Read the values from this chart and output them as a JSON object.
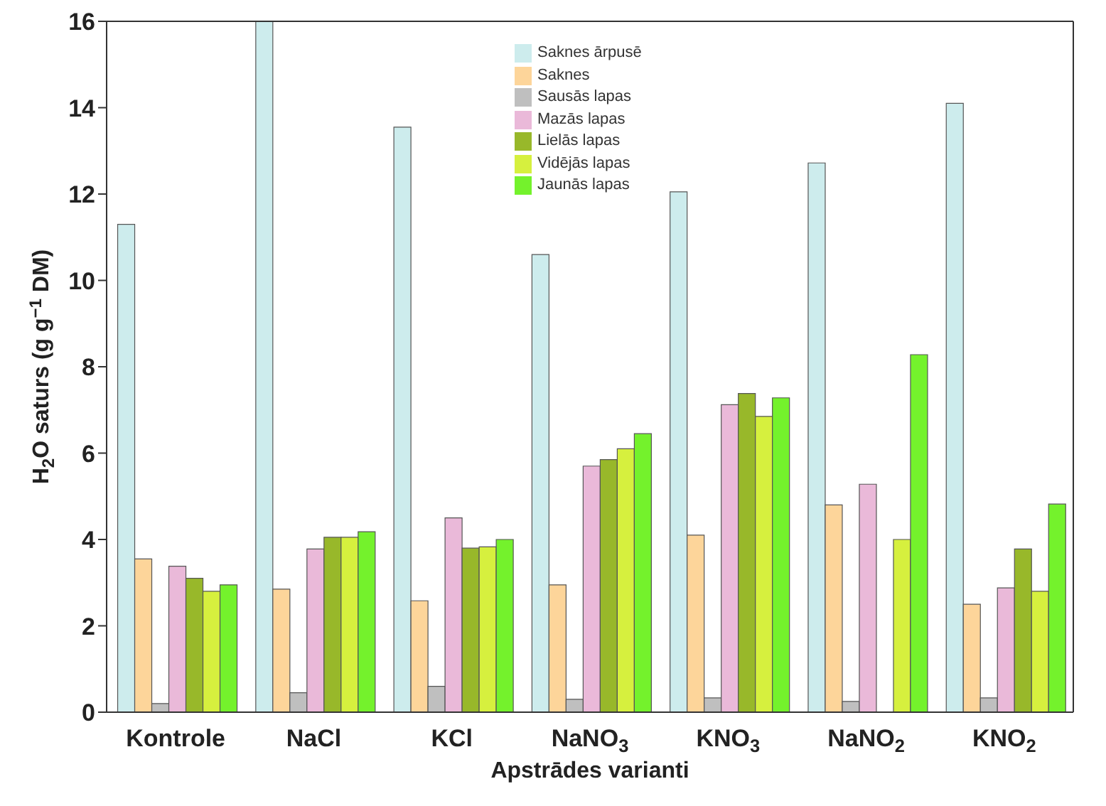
{
  "chart_data": {
    "type": "bar",
    "xlabel": "Apstrādes varianti",
    "ylabel": "H$_{2}$O saturs  (g g$^{−1}$ DM)",
    "categories": [
      "Kontrole",
      "NaCl",
      "KCl",
      "NaNO$_{3}$",
      "KNO$_{3}$",
      "NaNO$_{2}$",
      "KNO$_{2}$"
    ],
    "series": [
      {
        "name": "Saknes ārpusē",
        "color": "#cdeced",
        "values": [
          11.3,
          16,
          13.55,
          10.6,
          12.05,
          12.72,
          14.1
        ]
      },
      {
        "name": "Saknes",
        "color": "#fdd59a",
        "values": [
          3.55,
          2.85,
          2.58,
          2.95,
          4.1,
          4.8,
          2.5
        ]
      },
      {
        "name": "Sausās lapas",
        "color": "#bfbfbf",
        "values": [
          0.2,
          0.45,
          0.6,
          0.3,
          0.33,
          0.25,
          0.33
        ]
      },
      {
        "name": "Mazās lapas",
        "color": "#eab9d9",
        "values": [
          3.38,
          3.78,
          4.5,
          5.7,
          7.12,
          5.28,
          2.88
        ]
      },
      {
        "name": "Lielās lapas",
        "color": "#98b82a",
        "values": [
          3.1,
          4.05,
          3.8,
          5.85,
          7.38,
          null,
          3.78
        ]
      },
      {
        "name": "Vidējās lapas",
        "color": "#d6f03e",
        "values": [
          2.8,
          4.05,
          3.83,
          6.1,
          6.85,
          4.0,
          2.8
        ]
      },
      {
        "name": "Jaunās lapas",
        "color": "#74f22c",
        "values": [
          2.95,
          4.18,
          4.0,
          6.45,
          7.28,
          8.28,
          4.82
        ]
      }
    ],
    "ylim": [
      0,
      16
    ],
    "yticks": [
      0,
      2,
      4,
      6,
      8,
      10,
      12,
      14,
      16
    ],
    "grid": false,
    "legend": "top"
  }
}
